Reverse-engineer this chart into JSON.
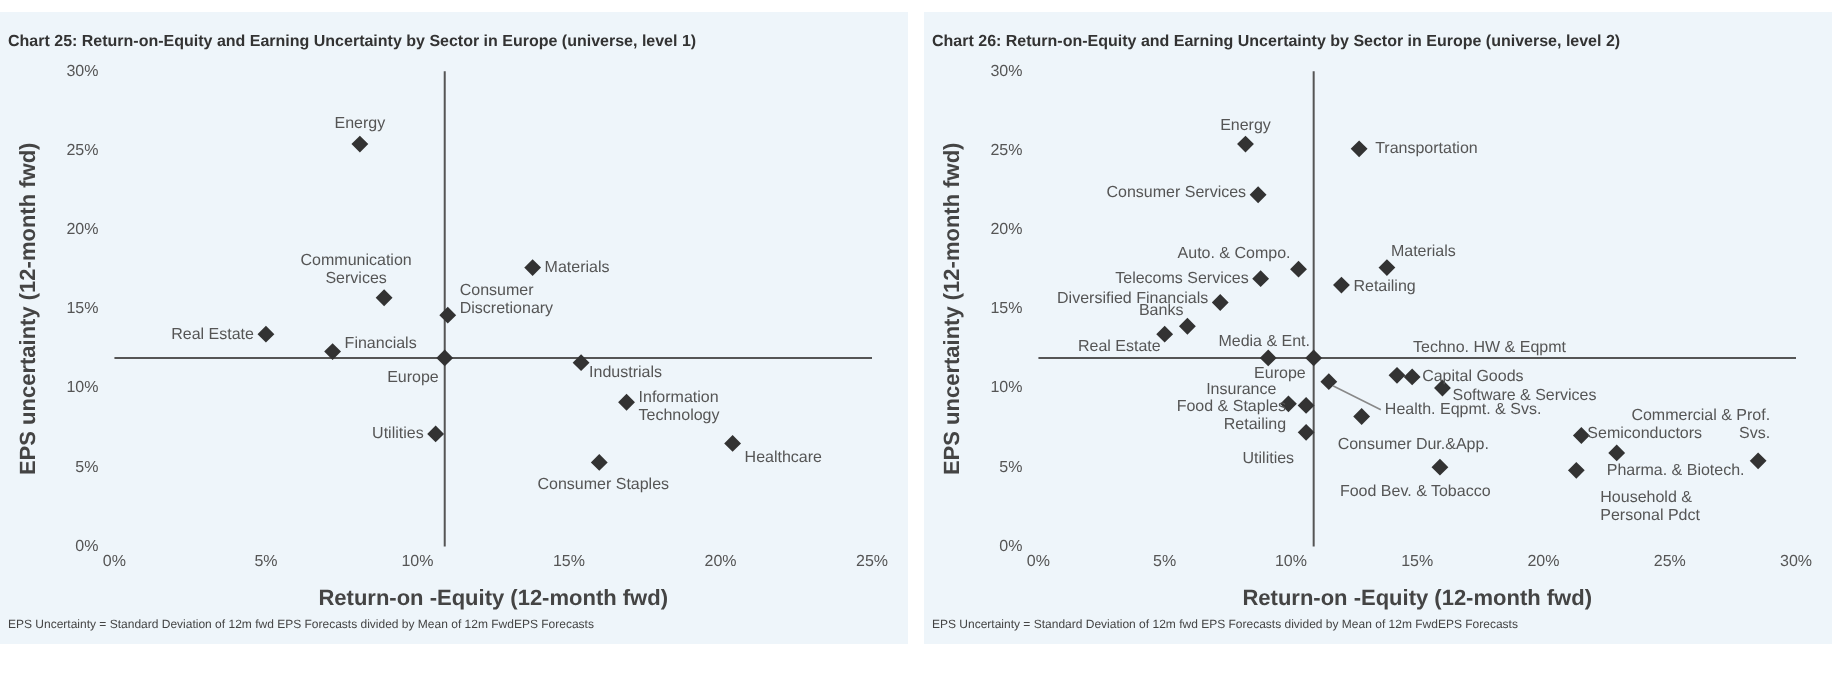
{
  "chart_data": [
    {
      "type": "scatter",
      "title": "Chart 25: Return-on-Equity and Earning Uncertainty by Sector in Europe (universe, level 1)",
      "xlabel": "Return-on -Equity (12-month fwd)",
      "ylabel": "EPS uncertainty (12-month fwd)",
      "series": [
        {
          "color": "#333333",
          "x": [
            8.1,
            8.9,
            13.8,
            11.0,
            5.0,
            7.2,
            10.9,
            15.4,
            16.9,
            20.4,
            10.6,
            16.0
          ],
          "values": [
            25.4,
            15.7,
            17.6,
            14.6,
            13.4,
            12.3,
            11.9,
            11.6,
            9.1,
            6.5,
            7.1,
            5.3
          ]
        }
      ],
      "marker": "diamond",
      "grid": false,
      "legend": false,
      "xlim": [
        0,
        25
      ],
      "xticks": [
        {
          "value": 0,
          "label": "0%"
        },
        {
          "value": 5,
          "label": "5%"
        },
        {
          "value": 10,
          "label": "10%"
        },
        {
          "value": 15,
          "label": "15%"
        },
        {
          "value": 20,
          "label": "20%"
        },
        {
          "value": 25,
          "label": "25%"
        }
      ],
      "ylim": [
        0,
        30
      ],
      "yticks": [
        {
          "value": 0,
          "label": "0%"
        },
        {
          "value": 5,
          "label": "5%"
        },
        {
          "value": 10,
          "label": "10%"
        },
        {
          "value": 15,
          "label": "15%"
        },
        {
          "value": 20,
          "label": "20%"
        },
        {
          "value": 25,
          "label": "25%"
        },
        {
          "value": 30,
          "label": "30%"
        }
      ],
      "ref_lines": [
        {
          "axis": "x",
          "value": 10.9,
          "color": "#555555"
        },
        {
          "axis": "y",
          "value": 11.9,
          "color": "#555555"
        }
      ],
      "annotations": [
        {
          "text": "Energy",
          "x": 8.1,
          "y": 25.4
        },
        {
          "text": "Communication Services",
          "x": 8.9,
          "y": 15.7
        },
        {
          "text": "Materials",
          "x": 13.8,
          "y": 17.6
        },
        {
          "text": "Consumer Discretionary",
          "x": 11.0,
          "y": 14.6
        },
        {
          "text": "Real Estate",
          "x": 5.0,
          "y": 13.4
        },
        {
          "text": "Financials",
          "x": 7.2,
          "y": 12.3
        },
        {
          "text": "Europe",
          "x": 10.9,
          "y": 11.9
        },
        {
          "text": "Industrials",
          "x": 15.4,
          "y": 11.6
        },
        {
          "text": "Information Technology",
          "x": 16.9,
          "y": 9.1
        },
        {
          "text": "Healthcare",
          "x": 20.4,
          "y": 6.5
        },
        {
          "text": "Utilities",
          "x": 10.6,
          "y": 7.1
        },
        {
          "text": "Consumer Staples",
          "x": 16.0,
          "y": 5.3
        },
        "EPS Uncertainty = Standard Deviation of 12m fwd EPS Forecasts divided by Mean of 12m FwdEPS Forecasts"
      ]
    },
    {
      "type": "scatter",
      "title": "Chart 26: Return-on-Equity and Earning Uncertainty by Sector in Europe (universe, level 2)",
      "xlabel": "Return-on -Equity (12-month fwd)",
      "ylabel": "EPS uncertainty (12-month fwd)",
      "series": [
        {
          "color": "#333333",
          "x": [
            8.2,
            12.7,
            8.7,
            10.3,
            13.8,
            8.8,
            12.0,
            7.2,
            5.9,
            5.0,
            9.1,
            10.9,
            14.2,
            14.8,
            16.0,
            11.5,
            9.9,
            10.6,
            10.6,
            12.8,
            15.9,
            21.5,
            22.9,
            21.3,
            28.5
          ],
          "values": [
            25.4,
            25.1,
            22.2,
            17.5,
            17.6,
            16.9,
            16.5,
            15.4,
            13.9,
            13.4,
            11.9,
            11.9,
            10.8,
            10.7,
            10.0,
            10.4,
            9.0,
            8.9,
            7.2,
            8.2,
            5.0,
            7.0,
            5.9,
            4.8,
            5.4
          ]
        }
      ],
      "marker": "diamond",
      "grid": false,
      "legend": false,
      "xlim": [
        0,
        30
      ],
      "xticks": [
        {
          "value": 0,
          "label": "0%"
        },
        {
          "value": 5,
          "label": "5%"
        },
        {
          "value": 10,
          "label": "10%"
        },
        {
          "value": 15,
          "label": "15%"
        },
        {
          "value": 20,
          "label": "20%"
        },
        {
          "value": 25,
          "label": "25%"
        },
        {
          "value": 30,
          "label": "30%"
        }
      ],
      "ylim": [
        0,
        30
      ],
      "yticks": [
        {
          "value": 0,
          "label": "0%"
        },
        {
          "value": 5,
          "label": "5%"
        },
        {
          "value": 10,
          "label": "10%"
        },
        {
          "value": 15,
          "label": "15%"
        },
        {
          "value": 20,
          "label": "20%"
        },
        {
          "value": 25,
          "label": "25%"
        },
        {
          "value": 30,
          "label": "30%"
        }
      ],
      "ref_lines": [
        {
          "axis": "x",
          "value": 10.9,
          "color": "#555555"
        },
        {
          "axis": "y",
          "value": 11.9,
          "color": "#555555"
        }
      ],
      "annotations": [
        {
          "text": "Energy",
          "x": 8.2,
          "y": 25.4
        },
        {
          "text": "Transportation",
          "x": 12.7,
          "y": 25.1
        },
        {
          "text": "Consumer Services",
          "x": 8.7,
          "y": 22.2
        },
        {
          "text": "Auto. & Compo.",
          "x": 10.3,
          "y": 17.5
        },
        {
          "text": "Materials",
          "x": 13.8,
          "y": 17.6
        },
        {
          "text": "Telecoms Services",
          "x": 8.8,
          "y": 16.9
        },
        {
          "text": "Retailing",
          "x": 12.0,
          "y": 16.5
        },
        {
          "text": "Diversified Financials",
          "x": 7.2,
          "y": 15.4
        },
        {
          "text": "Banks",
          "x": 5.9,
          "y": 13.9
        },
        {
          "text": "Real Estate",
          "x": 5.0,
          "y": 13.4
        },
        {
          "text": "Media & Ent.",
          "x": 9.1,
          "y": 11.9
        },
        {
          "text": "Europe",
          "x": 10.9,
          "y": 11.9
        },
        {
          "text": "Techno. HW & Eqpmt",
          "x": 14.2,
          "y": 10.8
        },
        {
          "text": "Capital Goods",
          "x": 14.8,
          "y": 10.7
        },
        {
          "text": "Software & Services",
          "x": 16.0,
          "y": 10.0
        },
        {
          "text": "Health. Eqpmt. & Svs.",
          "x": 11.5,
          "y": 10.4
        },
        {
          "text": "Insurance",
          "x": 9.9,
          "y": 9.0
        },
        {
          "text": "Food & Staples Retailing",
          "x": 10.6,
          "y": 8.9
        },
        {
          "text": "Utilities",
          "x": 10.6,
          "y": 7.2
        },
        {
          "text": "Consumer Dur.&App.",
          "x": 12.8,
          "y": 8.2
        },
        {
          "text": "Food Bev. & Tobacco",
          "x": 15.9,
          "y": 5.0
        },
        {
          "text": "Semiconductors",
          "x": 21.5,
          "y": 7.0
        },
        {
          "text": "Pharma. & Biotech.",
          "x": 22.9,
          "y": 5.9
        },
        {
          "text": "Household & Personal Pdct",
          "x": 21.3,
          "y": 4.8
        },
        {
          "text": "Commercial & Prof. Svs.",
          "x": 28.5,
          "y": 5.4
        },
        "EPS Uncertainty = Standard Deviation of 12m fwd EPS Forecasts divided by Mean of 12m FwdEPS Forecasts"
      ]
    }
  ]
}
